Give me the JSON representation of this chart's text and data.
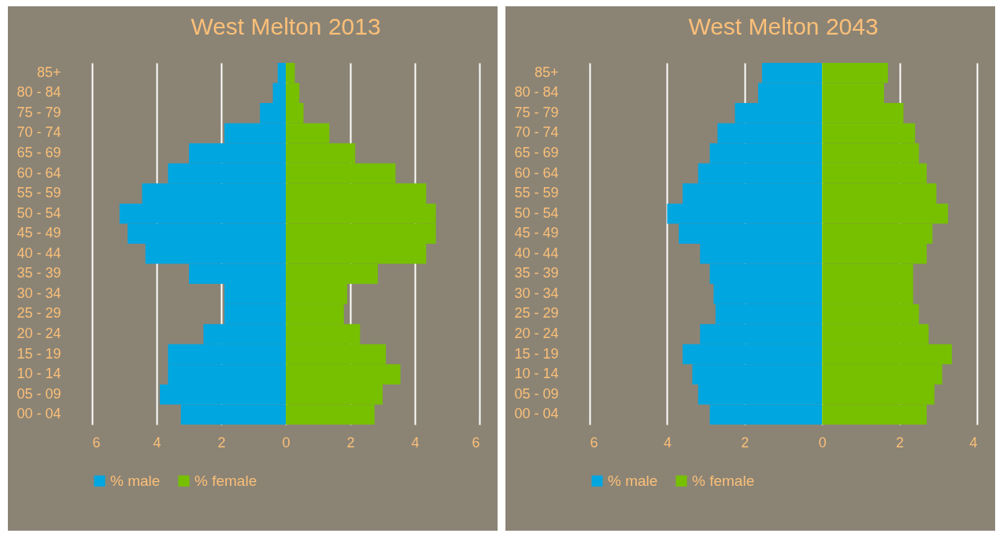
{
  "chart_data": [
    {
      "type": "bar",
      "title": "West Melton 2013",
      "orientation": "horizontal",
      "categories": [
        "85+",
        "80 - 84",
        "75 - 79",
        "70 - 74",
        "65 - 69",
        "60 - 64",
        "55 - 59",
        "50 - 54",
        "45 - 49",
        "40 - 44",
        "35 - 39",
        "30 - 34",
        "25 - 29",
        "20 - 24",
        "15 - 19",
        "10 - 14",
        "05 - 09",
        "00 - 04"
      ],
      "series": [
        {
          "name": "% male",
          "color": "#00a6e0",
          "values": [
            -0.25,
            -0.4,
            -0.8,
            -1.9,
            -3.0,
            -3.65,
            -4.45,
            -5.15,
            -4.9,
            -4.35,
            -3.0,
            -1.9,
            -1.9,
            -2.55,
            -3.65,
            -3.65,
            -3.9,
            -3.25
          ]
        },
        {
          "name": "% female",
          "color": "#76c000",
          "values": [
            0.28,
            0.42,
            0.55,
            1.35,
            2.15,
            3.4,
            4.35,
            4.65,
            4.65,
            4.35,
            2.85,
            1.9,
            1.8,
            2.3,
            3.1,
            3.55,
            3.0,
            2.75
          ]
        }
      ],
      "xlim": [
        -6,
        6
      ],
      "stacked": true,
      "xticks": [
        {
          "value": -6,
          "label": "6"
        },
        {
          "value": -4,
          "label": "4"
        },
        {
          "value": -2,
          "label": "2"
        },
        0,
        2,
        4,
        6
      ],
      "grid": "x",
      "legend": "bottom"
    },
    {
      "type": "bar",
      "title": "West Melton 2043",
      "orientation": "horizontal",
      "categories": [
        "85+",
        "80 - 84",
        "75 - 79",
        "70 - 74",
        "65 - 69",
        "60 - 64",
        "55 - 59",
        "50 - 54",
        "45 - 49",
        "40 - 44",
        "35 - 39",
        "30 - 34",
        "25 - 29",
        "20 - 24",
        "15 - 19",
        "10 - 14",
        "05 - 09",
        "00 - 04"
      ],
      "series": [
        {
          "name": "% male",
          "color": "#00a6e0",
          "values": [
            -1.55,
            -1.65,
            -2.25,
            -2.7,
            -2.9,
            -3.2,
            -3.6,
            -4.0,
            -3.7,
            -3.15,
            -2.9,
            -2.8,
            -2.75,
            -3.15,
            -3.6,
            -3.35,
            -3.2,
            -2.9
          ]
        },
        {
          "name": "% female",
          "color": "#76c000",
          "values": [
            1.7,
            1.6,
            2.1,
            2.4,
            2.5,
            2.7,
            2.95,
            3.25,
            2.85,
            2.7,
            2.35,
            2.35,
            2.5,
            2.75,
            3.35,
            3.1,
            2.9,
            2.7
          ]
        }
      ],
      "xlim": [
        -6,
        4
      ],
      "stacked": true,
      "xticks": [
        {
          "value": -6,
          "label": "6"
        },
        {
          "value": -4,
          "label": "4"
        },
        {
          "value": -2,
          "label": "2"
        },
        0,
        2,
        4
      ],
      "grid": "x",
      "legend": "bottom"
    }
  ]
}
